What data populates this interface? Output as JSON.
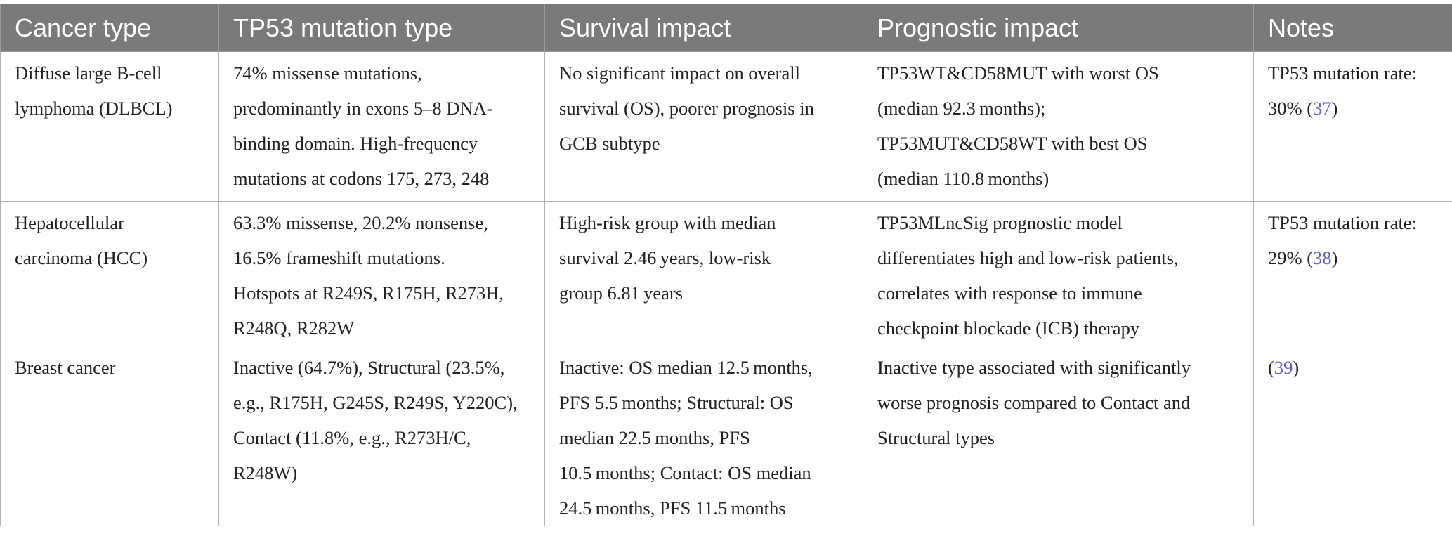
{
  "table": {
    "headers": [
      "Cancer type",
      "TP53 mutation type",
      "Survival impact",
      "Prognostic impact",
      "Notes"
    ],
    "rows": [
      {
        "cancer_type": [
          "Diffuse large B-cell",
          "lymphoma (DLBCL)"
        ],
        "mutation_type": [
          "74% missense mutations,",
          "predominantly in exons 5–8 DNA-",
          "binding domain. High-frequency",
          "mutations at codons 175, 273, 248"
        ],
        "survival_impact": [
          "No significant impact on overall",
          "survival (OS), poorer prognosis in",
          "GCB subtype"
        ],
        "prognostic_impact": [
          "TP53WT&CD58MUT with worst OS",
          "(median 92.3 months);",
          "TP53MUT&CD58WT with best OS",
          "(median 110.8 months)"
        ],
        "notes": {
          "line1": "TP53 mutation rate:",
          "prefix": "30% (",
          "citation": "37",
          "suffix": ")"
        }
      },
      {
        "cancer_type": [
          "Hepatocellular",
          "carcinoma (HCC)"
        ],
        "mutation_type": [
          "63.3% missense, 20.2% nonsense,",
          "16.5% frameshift mutations.",
          "Hotspots at R249S, R175H, R273H,",
          "R248Q, R282W"
        ],
        "survival_impact": [
          "High-risk group with median",
          "survival 2.46 years, low-risk",
          "group 6.81 years"
        ],
        "prognostic_impact": [
          "TP53MLncSig prognostic model",
          "differentiates high and low-risk patients,",
          "correlates with response to immune",
          "checkpoint blockade (ICB) therapy"
        ],
        "notes": {
          "line1": "TP53 mutation rate:",
          "prefix": "29% (",
          "citation": "38",
          "suffix": ")"
        }
      },
      {
        "cancer_type": [
          "Breast cancer"
        ],
        "mutation_type": [
          "Inactive (64.7%), Structural (23.5%,",
          "e.g., R175H, G245S, R249S, Y220C),",
          "Contact (11.8%, e.g., R273H/C,",
          "R248W)"
        ],
        "survival_impact": [
          "Inactive: OS median 12.5 months,",
          "PFS 5.5 months; Structural: OS",
          "median 22.5 months, PFS",
          "10.5 months; Contact: OS median",
          "24.5 months, PFS 11.5 months"
        ],
        "prognostic_impact": [
          "Inactive type associated with significantly",
          "worse prognosis compared to Contact and",
          "Structural types"
        ],
        "notes": {
          "line1": "",
          "prefix": "(",
          "citation": "39",
          "suffix": ")"
        }
      }
    ]
  }
}
